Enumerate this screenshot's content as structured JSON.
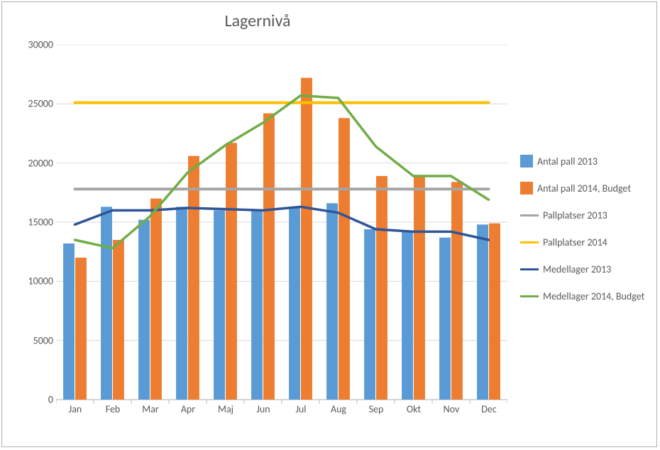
{
  "chart": {
    "type": "bar+line",
    "title": "Lagernivå",
    "title_fontsize": 24,
    "background_color": "#ffffff",
    "frame_border_color": "#b0b0b0",
    "grid_color": "#d9d9d9",
    "axis_line_color": "#bfbfbf",
    "tick_color": "#bfbfbf",
    "tick_font_color": "#595959",
    "tick_fontsize": 14,
    "y": {
      "min": 0,
      "max": 30000,
      "step": 5000,
      "ticks": [
        0,
        5000,
        10000,
        15000,
        20000,
        25000,
        30000
      ]
    },
    "categories": [
      "Jan",
      "Feb",
      "Mar",
      "Apr",
      "Maj",
      "Jun",
      "Jul",
      "Aug",
      "Sep",
      "Okt",
      "Nov",
      "Dec"
    ],
    "bar_width_rel": 0.3,
    "bar_gap_rel": 0.02,
    "series": {
      "antal_pall_2013": {
        "label": "Antal pall 2013",
        "type": "bar",
        "color": "#5b9bd5",
        "values": [
          13200,
          16300,
          15200,
          16300,
          16000,
          16000,
          16200,
          16600,
          14400,
          14200,
          13700,
          14800
        ]
      },
      "antal_pall_2014_budget": {
        "label": "Antal pall 2014, Budget",
        "type": "bar",
        "color": "#ed7d31",
        "values": [
          12000,
          13500,
          17000,
          20600,
          21700,
          24200,
          27200,
          23800,
          18900,
          18900,
          18400,
          14900
        ]
      },
      "pallplatser_2013": {
        "label": "Pallplatser 2013",
        "type": "line",
        "color": "#a5a5a5",
        "stroke_width": 4,
        "values": [
          17800,
          17800,
          17800,
          17800,
          17800,
          17800,
          17800,
          17800,
          17800,
          17800,
          17800,
          17800
        ]
      },
      "pallplatser_2014": {
        "label": "Pallplatser 2014",
        "type": "line",
        "color": "#ffc000",
        "stroke_width": 4,
        "values": [
          25100,
          25100,
          25100,
          25100,
          25100,
          25100,
          25100,
          25100,
          25100,
          25100,
          25100,
          25100
        ]
      },
      "medellager_2013": {
        "label": "Medellager 2013",
        "type": "line",
        "color": "#2e5597",
        "stroke_width": 3.5,
        "values": [
          14800,
          16000,
          16000,
          16200,
          16100,
          16000,
          16300,
          15800,
          14400,
          14200,
          14200,
          13500
        ]
      },
      "medellager_2014_budget": {
        "label": "Medellager 2014, Budget",
        "type": "line",
        "color": "#70ad47",
        "stroke_width": 3.5,
        "values": [
          13500,
          12800,
          15500,
          19200,
          21500,
          23400,
          25700,
          25500,
          21400,
          18900,
          18900,
          16900
        ]
      }
    },
    "legend_order": [
      "antal_pall_2013",
      "antal_pall_2014_budget",
      "pallplatser_2013",
      "pallplatser_2014",
      "medellager_2013",
      "medellager_2014_budget"
    ]
  }
}
